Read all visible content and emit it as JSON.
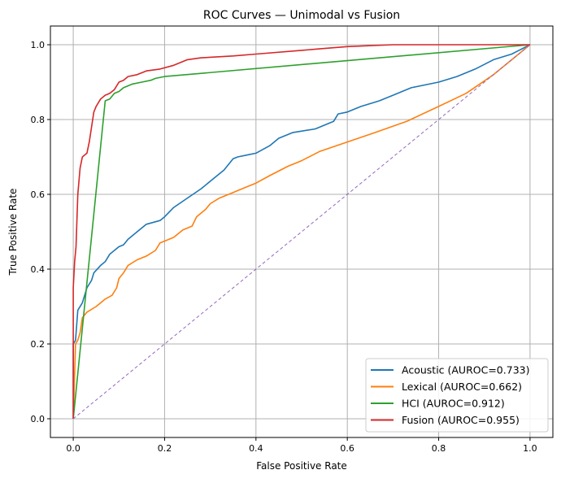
{
  "chart_data": {
    "type": "line",
    "title": "ROC Curves — Unimodal vs Fusion",
    "xlabel": "False Positive Rate",
    "ylabel": "True Positive Rate",
    "xlim": [
      -0.05,
      1.05
    ],
    "ylim": [
      -0.05,
      1.05
    ],
    "xticks": [
      0.0,
      0.2,
      0.4,
      0.6,
      0.8,
      1.0
    ],
    "yticks": [
      0.0,
      0.2,
      0.4,
      0.6,
      0.8,
      1.0
    ],
    "xtick_labels": [
      "0.0",
      "0.2",
      "0.4",
      "0.6",
      "0.8",
      "1.0"
    ],
    "ytick_labels": [
      "0.0",
      "0.2",
      "0.4",
      "0.6",
      "0.8",
      "1.0"
    ],
    "grid": true,
    "legend_position": "lower-right",
    "series": [
      {
        "name": "Acoustic (AUROC=0.733)",
        "color": "#1f77b4",
        "x": [
          0,
          0,
          0.005,
          0.01,
          0.02,
          0.03,
          0.04,
          0.045,
          0.06,
          0.07,
          0.08,
          0.1,
          0.11,
          0.12,
          0.14,
          0.16,
          0.19,
          0.2,
          0.22,
          0.25,
          0.28,
          0.3,
          0.33,
          0.35,
          0.36,
          0.38,
          0.4,
          0.43,
          0.45,
          0.48,
          0.53,
          0.57,
          0.58,
          0.6,
          0.63,
          0.67,
          0.7,
          0.74,
          0.8,
          0.84,
          0.88,
          0.92,
          0.96,
          1
        ],
        "y": [
          0,
          0.2,
          0.21,
          0.29,
          0.31,
          0.35,
          0.37,
          0.39,
          0.41,
          0.42,
          0.44,
          0.46,
          0.465,
          0.48,
          0.5,
          0.52,
          0.53,
          0.54,
          0.565,
          0.59,
          0.615,
          0.635,
          0.665,
          0.695,
          0.7,
          0.705,
          0.71,
          0.73,
          0.75,
          0.765,
          0.775,
          0.795,
          0.815,
          0.82,
          0.835,
          0.85,
          0.865,
          0.885,
          0.9,
          0.915,
          0.935,
          0.96,
          0.975,
          1
        ]
      },
      {
        "name": "Lexical (AUROC=0.662)",
        "color": "#ff7f0e",
        "x": [
          0,
          0.005,
          0.01,
          0.015,
          0.02,
          0.03,
          0.05,
          0.07,
          0.085,
          0.095,
          0.1,
          0.11,
          0.12,
          0.14,
          0.16,
          0.18,
          0.19,
          0.2,
          0.22,
          0.24,
          0.26,
          0.27,
          0.29,
          0.3,
          0.32,
          0.35,
          0.38,
          0.4,
          0.43,
          0.47,
          0.5,
          0.54,
          0.6,
          0.66,
          0.73,
          0.8,
          0.86,
          0.92,
          1
        ],
        "y": [
          0,
          0.2,
          0.21,
          0.23,
          0.27,
          0.285,
          0.3,
          0.32,
          0.33,
          0.35,
          0.375,
          0.39,
          0.41,
          0.425,
          0.435,
          0.45,
          0.47,
          0.475,
          0.485,
          0.505,
          0.515,
          0.54,
          0.56,
          0.575,
          0.59,
          0.605,
          0.62,
          0.63,
          0.65,
          0.675,
          0.69,
          0.715,
          0.74,
          0.765,
          0.795,
          0.835,
          0.87,
          0.92,
          1
        ]
      },
      {
        "name": "HCI (AUROC=0.912)",
        "color": "#2ca02c",
        "x": [
          0,
          0.07,
          0.08,
          0.09,
          0.1,
          0.11,
          0.13,
          0.15,
          0.17,
          0.18,
          0.2,
          1
        ],
        "y": [
          0,
          0.85,
          0.855,
          0.87,
          0.875,
          0.885,
          0.895,
          0.9,
          0.905,
          0.91,
          0.915,
          1
        ]
      },
      {
        "name": "Fusion (AUROC=0.955)",
        "color": "#d62728",
        "x": [
          0,
          0,
          0.003,
          0.006,
          0.01,
          0.015,
          0.02,
          0.03,
          0.035,
          0.04,
          0.045,
          0.05,
          0.055,
          0.06,
          0.07,
          0.08,
          0.09,
          0.1,
          0.11,
          0.12,
          0.14,
          0.16,
          0.19,
          0.22,
          0.25,
          0.28,
          0.35,
          0.4,
          0.5,
          0.55,
          0.6,
          0.7,
          1
        ],
        "y": [
          0,
          0.35,
          0.42,
          0.46,
          0.6,
          0.67,
          0.7,
          0.71,
          0.74,
          0.78,
          0.82,
          0.835,
          0.845,
          0.855,
          0.865,
          0.87,
          0.88,
          0.9,
          0.905,
          0.915,
          0.92,
          0.93,
          0.935,
          0.945,
          0.96,
          0.965,
          0.97,
          0.975,
          0.985,
          0.99,
          0.995,
          1,
          1
        ]
      }
    ],
    "reference_line": {
      "x": [
        0,
        1
      ],
      "y": [
        0,
        1
      ],
      "color": "#9467bd",
      "style": "dashed"
    }
  }
}
